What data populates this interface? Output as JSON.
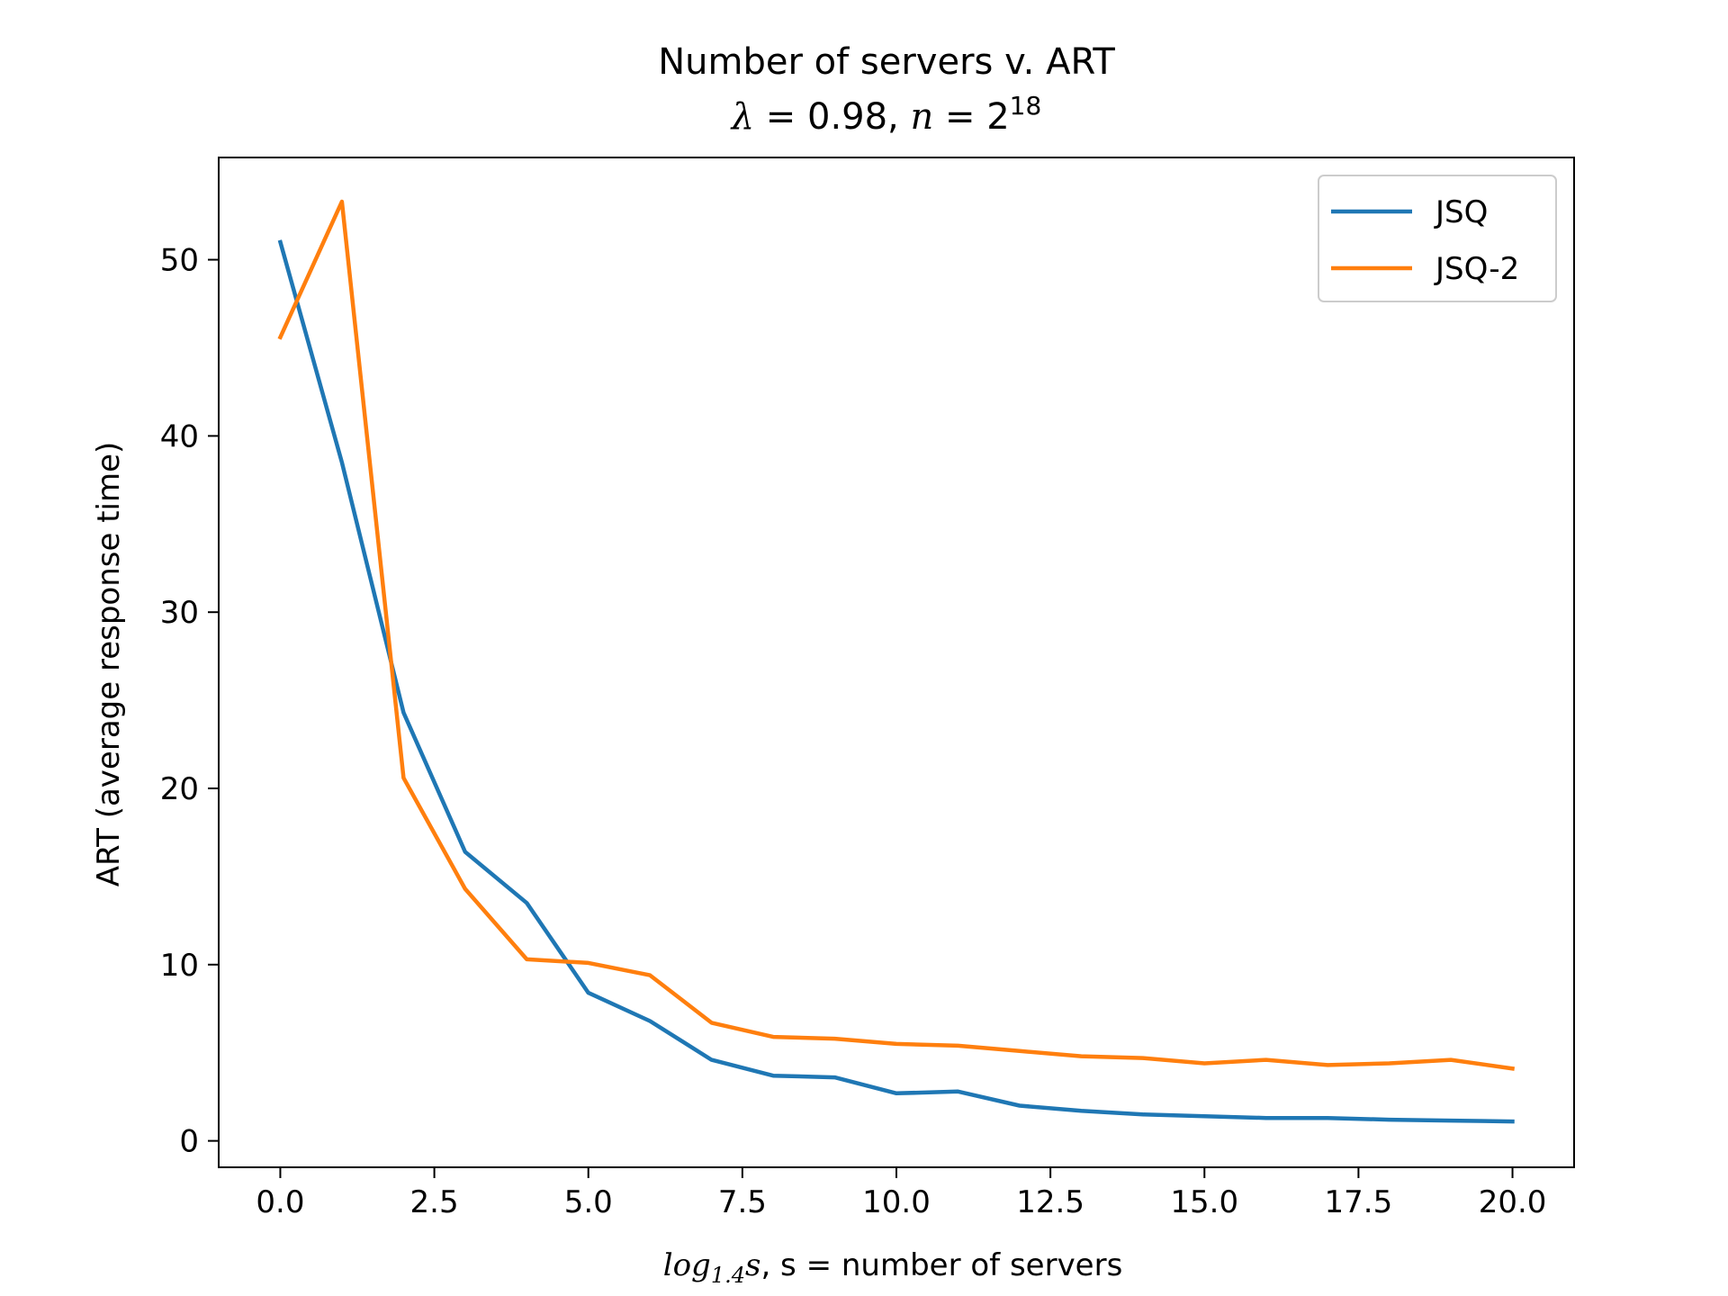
{
  "chart_data": {
    "type": "line",
    "title": "Number of servers v. ART",
    "subtitle": {
      "lambda_symbol": "λ",
      "eq1": " = 0.98, ",
      "n_symbol": "n",
      "eq2": " = 2",
      "exponent": "18"
    },
    "xlabel": {
      "log_text": "log",
      "base": "1.4",
      "var": "s",
      "rest": ", s = number of servers"
    },
    "ylabel": "ART (average response time)",
    "xlim": [
      -1,
      21
    ],
    "ylim": [
      -1.5,
      55.8
    ],
    "xticks": [
      0,
      2.5,
      5,
      7.5,
      10,
      12.5,
      15,
      17.5,
      20
    ],
    "xtick_labels": [
      "0.0",
      "2.5",
      "5.0",
      "7.5",
      "10.0",
      "12.5",
      "15.0",
      "17.5",
      "20.0"
    ],
    "yticks": [
      0,
      10,
      20,
      30,
      40,
      50
    ],
    "ytick_labels": [
      "0",
      "10",
      "20",
      "30",
      "40",
      "50"
    ],
    "grid": false,
    "legend_position": "top-right",
    "x": [
      0,
      1,
      2,
      3,
      4,
      5,
      6,
      7,
      8,
      9,
      10,
      11,
      12,
      13,
      14,
      15,
      16,
      17,
      18,
      19,
      20
    ],
    "series": [
      {
        "name": "JSQ",
        "color": "#1f77b4",
        "values": [
          51.0,
          38.5,
          24.3,
          16.4,
          13.5,
          8.4,
          6.8,
          4.6,
          3.7,
          3.6,
          2.7,
          2.8,
          2.0,
          1.7,
          1.5,
          1.4,
          1.3,
          1.3,
          1.2,
          1.15,
          1.1
        ]
      },
      {
        "name": "JSQ-2",
        "color": "#ff7f0e",
        "values": [
          45.6,
          53.3,
          20.6,
          14.3,
          10.3,
          10.1,
          9.4,
          6.7,
          5.9,
          5.8,
          5.5,
          5.4,
          5.1,
          4.8,
          4.7,
          4.4,
          4.6,
          4.3,
          4.4,
          4.6,
          4.1
        ]
      }
    ]
  }
}
